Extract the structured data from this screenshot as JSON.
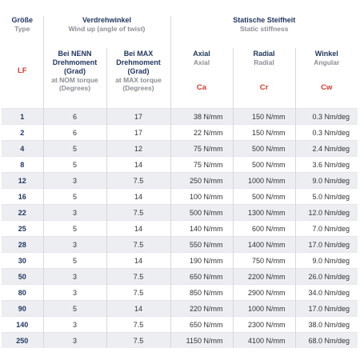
{
  "header": {
    "size": {
      "title": "Größe",
      "subtitle": "Type",
      "symbol": "LF"
    },
    "twist_group": {
      "title": "Verdrehwinkel",
      "subtitle": "Wind up (angle of twist)"
    },
    "stiffness_group": {
      "title": "Statische Steifheit",
      "subtitle": "Static stiffness"
    },
    "nom": {
      "title_line1": "Bei NENN",
      "title_line2": "Drehmoment",
      "title_line3": "(Grad)",
      "sub_line1": "at NOM torque",
      "sub_line2": "(Degrees)"
    },
    "max": {
      "title_line1": "Bei MAX",
      "title_line2": "Drehmoment",
      "title_line3": "(Grad)",
      "sub_line1": "at MAX torque",
      "sub_line2": "(Degrees)"
    },
    "axial": {
      "title": "Axial",
      "subtitle": "Axial",
      "symbol": "Ca"
    },
    "radial": {
      "title": "Radial",
      "subtitle": "Radial",
      "symbol": "Cr"
    },
    "angular": {
      "title": "Winkel",
      "subtitle": "Angular",
      "symbol": "Cw"
    }
  },
  "rows": [
    {
      "size": "1",
      "nom": "6",
      "max": "17",
      "axial": "38 N/mm",
      "radial": "150 N/mm",
      "angular": "0.3 Nm/deg"
    },
    {
      "size": "2",
      "nom": "6",
      "max": "17",
      "axial": "22 N/mm",
      "radial": "150 N/mm",
      "angular": "0.3 Nm/deg"
    },
    {
      "size": "4",
      "nom": "5",
      "max": "12",
      "axial": "75 N/mm",
      "radial": "500 N/mm",
      "angular": "2.4 Nm/deg"
    },
    {
      "size": "8",
      "nom": "5",
      "max": "14",
      "axial": "75 N/mm",
      "radial": "500 N/mm",
      "angular": "3.6 Nm/deg"
    },
    {
      "size": "12",
      "nom": "3",
      "max": "7.5",
      "axial": "250 N/mm",
      "radial": "1000 N/mm",
      "angular": "9.0 Nm/deg"
    },
    {
      "size": "16",
      "nom": "5",
      "max": "14",
      "axial": "100 N/mm",
      "radial": "500 N/mm",
      "angular": "5.0 Nm/deg"
    },
    {
      "size": "22",
      "nom": "3",
      "max": "7.5",
      "axial": "500 N/mm",
      "radial": "1300 N/mm",
      "angular": "12.0 Nm/deg"
    },
    {
      "size": "25",
      "nom": "5",
      "max": "14",
      "axial": "140 N/mm",
      "radial": "600 N/mm",
      "angular": "7.0 Nm/deg"
    },
    {
      "size": "28",
      "nom": "3",
      "max": "7.5",
      "axial": "550 N/mm",
      "radial": "1400 N/mm",
      "angular": "17.0 Nm/deg"
    },
    {
      "size": "30",
      "nom": "5",
      "max": "14",
      "axial": "190 N/mm",
      "radial": "750 N/mm",
      "angular": "9.0 Nm/deg"
    },
    {
      "size": "50",
      "nom": "3",
      "max": "7.5",
      "axial": "650 N/mm",
      "radial": "2200 N/mm",
      "angular": "26.0 Nm/deg"
    },
    {
      "size": "80",
      "nom": "3",
      "max": "7.5",
      "axial": "850 N/mm",
      "radial": "2900 N/mm",
      "angular": "34.0 Nm/deg"
    },
    {
      "size": "90",
      "nom": "5",
      "max": "14",
      "axial": "220 N/mm",
      "radial": "1000 N/mm",
      "angular": "17.0 Nm/deg"
    },
    {
      "size": "140",
      "nom": "3",
      "max": "7.5",
      "axial": "650 N/mm",
      "radial": "2300 N/mm",
      "angular": "38.0 Nm/deg"
    },
    {
      "size": "250",
      "nom": "3",
      "max": "7.5",
      "axial": "1150 N/mm",
      "radial": "4100 N/mm",
      "angular": "68.0 Nm/deg"
    }
  ]
}
